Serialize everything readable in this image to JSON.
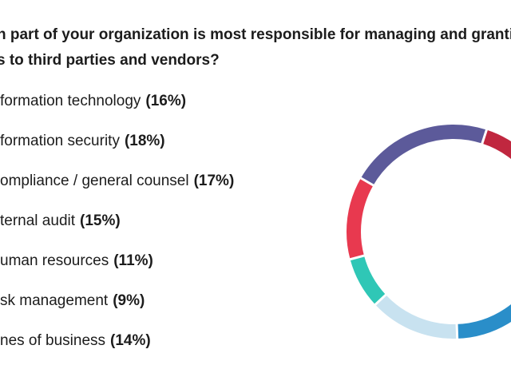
{
  "question": {
    "line1": "n part of your organization is most responsible for managing and grantin",
    "line2": "s to third parties and vendors?"
  },
  "chart_data": {
    "type": "pie",
    "donut": true,
    "categories": [
      "formation technology",
      "formation security",
      "ompliance / general counsel",
      "ternal audit",
      "uman resources",
      "sk management",
      "nes of business"
    ],
    "values": [
      16,
      18,
      17,
      15,
      11,
      9,
      14
    ],
    "labels": [
      "(16%)",
      "(18%)",
      "(17%)",
      "(15%)",
      "(11%)",
      "(9%)",
      "(14%)"
    ],
    "segments_in_view": [
      {
        "color": "#5c5a9a",
        "start": 300,
        "end": 18
      },
      {
        "color": "#c0273f",
        "start": 18,
        "end": 60
      },
      {
        "color": "#2a8ec9",
        "start": 115,
        "end": 178
      },
      {
        "color": "#c8e2f0",
        "start": 178,
        "end": 227
      },
      {
        "color": "#2fc7b6",
        "start": 227,
        "end": 255
      },
      {
        "color": "#e8394f",
        "start": 255,
        "end": 300
      }
    ]
  }
}
